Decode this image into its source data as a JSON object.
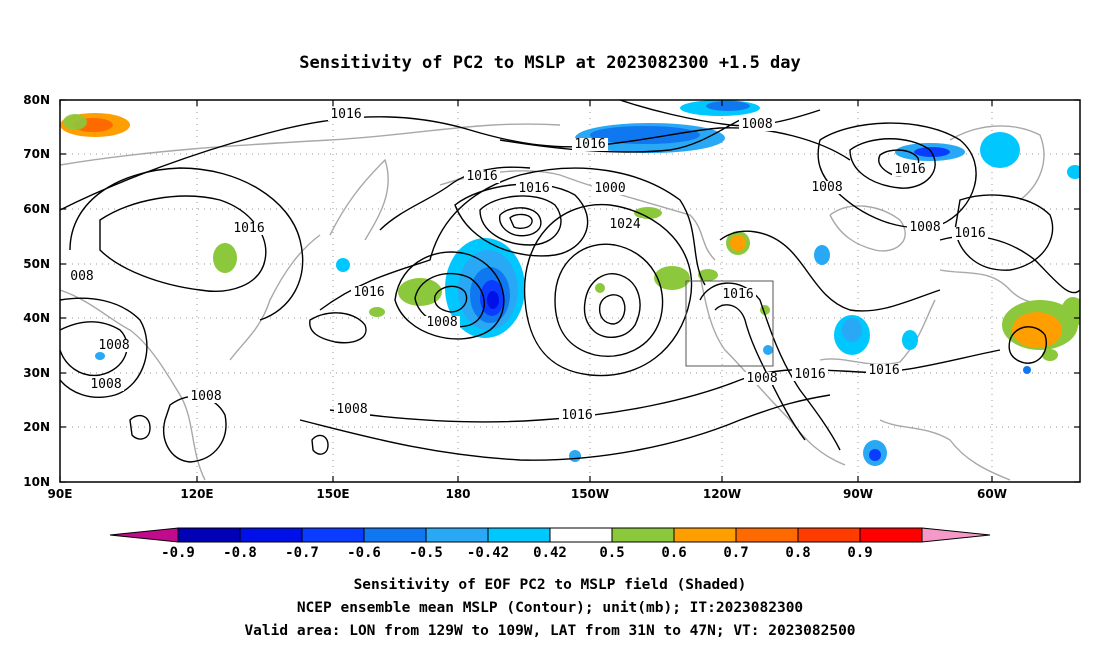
{
  "title": "Sensitivity of PC2 to MSLP at 2023082300 +1.5 day",
  "lat_labels": [
    "80N",
    "70N",
    "60N",
    "50N",
    "40N",
    "30N",
    "20N",
    "10N"
  ],
  "lon_labels": [
    "90E",
    "120E",
    "150E",
    "180",
    "150W",
    "120W",
    "90W",
    "60W"
  ],
  "contour_labels": [
    "1016",
    "1008",
    "1016",
    "1016",
    "1016",
    "1000",
    "1008",
    "1016",
    "1008",
    "1016",
    "1024",
    "1016",
    "1016",
    "008",
    "1008",
    "1008",
    "1008",
    "1008",
    "1016",
    "1008",
    "1016",
    "1016",
    "1008",
    "1016"
  ],
  "colorbar": {
    "labels": [
      "-0.9",
      "-0.8",
      "-0.7",
      "-0.6",
      "-0.5",
      "-0.42",
      "0.42",
      "0.5",
      "0.6",
      "0.7",
      "0.8",
      "0.9"
    ],
    "colors": [
      "#c10a8c",
      "#0000b4",
      "#0010e8",
      "#0a3cff",
      "#0f78f0",
      "#28a8f5",
      "#00c8ff",
      "#ffffff",
      "#8cc83c",
      "#ff9e00",
      "#ff6a00",
      "#ff3c00",
      "#ff0000",
      "#f59ac8"
    ]
  },
  "caption": [
    "Sensitivity of EOF PC2 to MSLP field (Shaded)",
    "NCEP ensemble mean MSLP (Contour); unit(mb); IT:2023082300",
    "Valid area: LON from 129W to 109W, LAT from 31N to 47N; VT: 2023082500"
  ]
}
